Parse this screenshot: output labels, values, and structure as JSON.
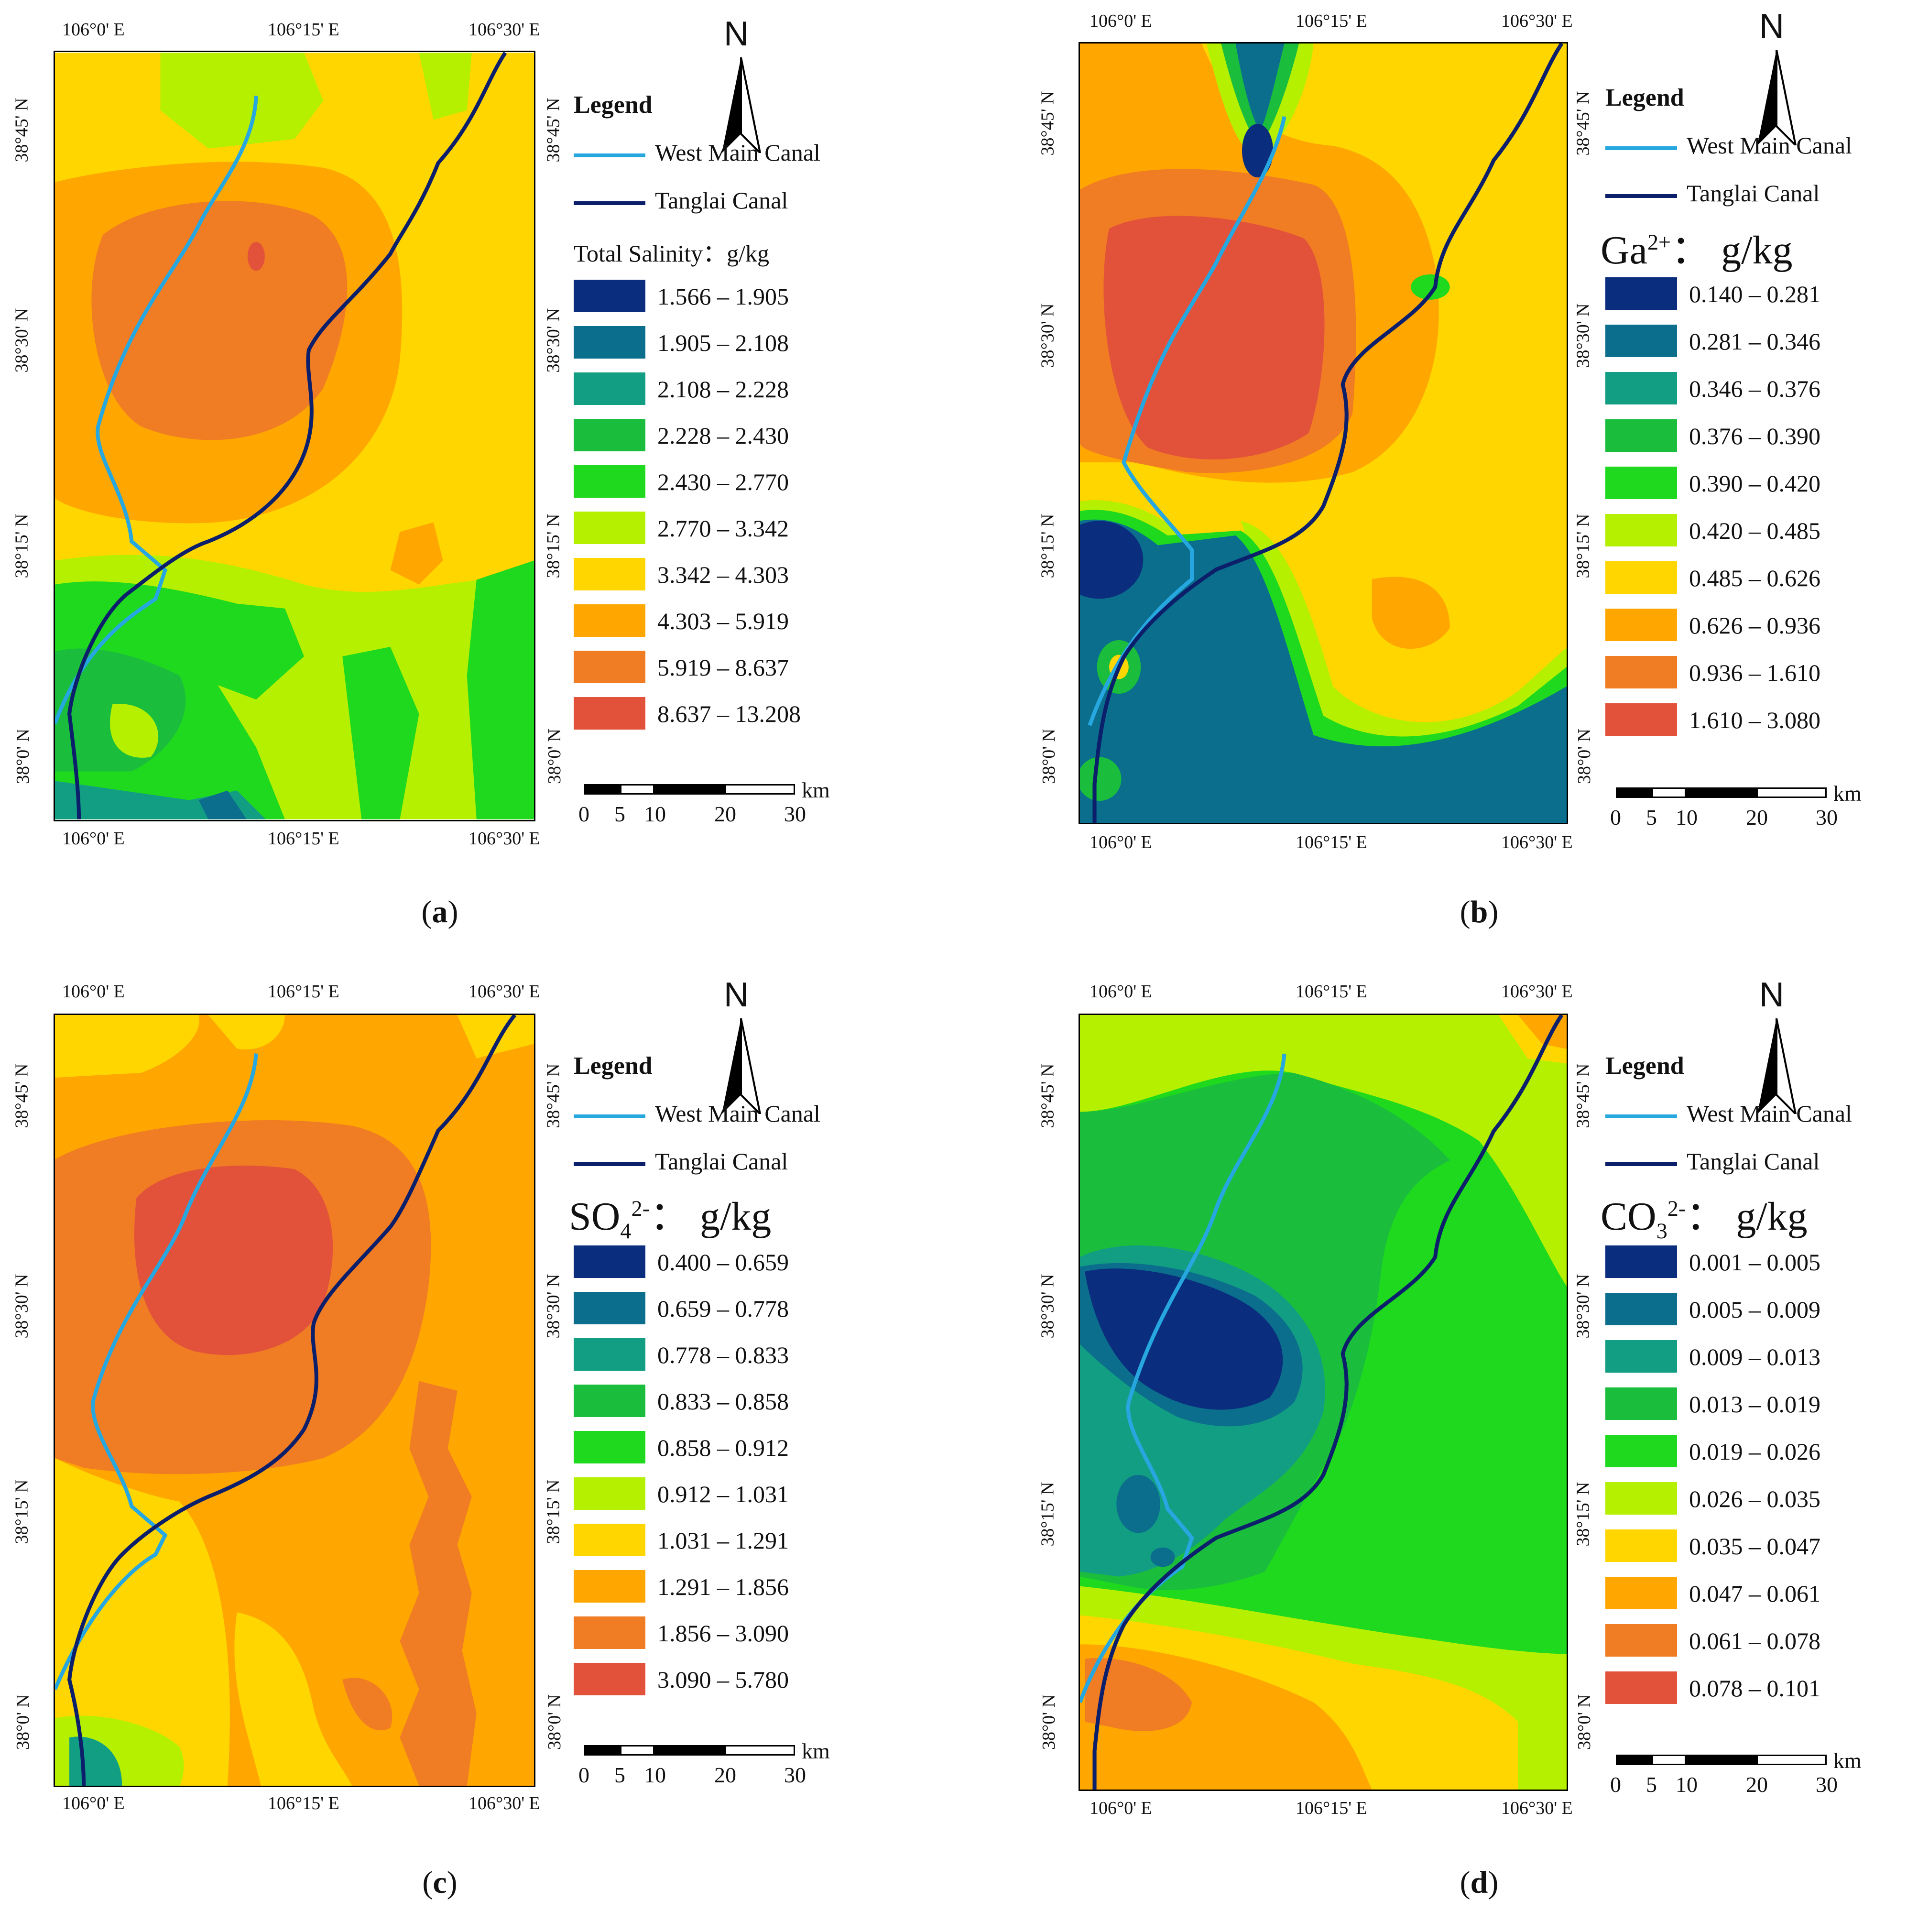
{
  "panels": [
    {
      "id": "a",
      "caption_letter": "a",
      "legend_title": "Legend",
      "canal1_label": "West Main Canal",
      "canal2_label": "Tanglai Canal",
      "variable": {
        "base": "Total Salinity",
        "sup": "",
        "sub": "",
        "unit": "：g/kg"
      },
      "classes": [
        "1.566 – 1.905",
        "1.905 – 2.108",
        "2.108 – 2.228",
        "2.228 – 2.430",
        "2.430 – 2.770",
        "2.770 – 3.342",
        "3.342 – 4.303",
        "4.303 – 5.919",
        "5.919 – 8.637",
        "8.637 – 13.208"
      ],
      "x_ticks": [
        "106°0' E",
        "106°15' E",
        "106°30' E"
      ],
      "y_ticks": [
        "38°45' N",
        "38°30' N",
        "38°15' N",
        "38°0' N"
      ],
      "north_label": "N",
      "scale_unit": "km",
      "scale_labels": [
        "0",
        "5",
        "10",
        "20",
        "30"
      ]
    },
    {
      "id": "b",
      "caption_letter": "b",
      "legend_title": "Legend",
      "canal1_label": "West Main Canal",
      "canal2_label": "Tanglai Canal",
      "variable": {
        "base": "Ga",
        "sup": "2+",
        "sub": "",
        "unit": "： g/kg"
      },
      "classes": [
        "0.140 – 0.281",
        "0.281 – 0.346",
        "0.346 – 0.376",
        "0.376 – 0.390",
        "0.390 – 0.420",
        "0.420 – 0.485",
        "0.485 – 0.626",
        "0.626 – 0.936",
        "0.936 – 1.610",
        "1.610 – 3.080"
      ],
      "x_ticks": [
        "106°0' E",
        "106°15' E",
        "106°30' E"
      ],
      "y_ticks": [
        "38°45' N",
        "38°30' N",
        "38°15' N",
        "38°0' N"
      ],
      "north_label": "N",
      "scale_unit": "km",
      "scale_labels": [
        "0",
        "5",
        "10",
        "20",
        "30"
      ]
    },
    {
      "id": "c",
      "caption_letter": "c",
      "legend_title": "Legend",
      "canal1_label": "West Main Canal",
      "canal2_label": "Tanglai Canal",
      "variable": {
        "base": "SO",
        "sup": "2-",
        "sub": "4",
        "unit": "： g/kg"
      },
      "classes": [
        "0.400 – 0.659",
        "0.659 – 0.778",
        "0.778 – 0.833",
        "0.833 – 0.858",
        "0.858 – 0.912",
        "0.912 – 1.031",
        "1.031 – 1.291",
        "1.291 – 1.856",
        "1.856 – 3.090",
        "3.090 – 5.780"
      ],
      "x_ticks": [
        "106°0' E",
        "106°15' E",
        "106°30' E"
      ],
      "y_ticks": [
        "38°45' N",
        "38°30' N",
        "38°15' N",
        "38°0' N"
      ],
      "north_label": "N",
      "scale_unit": "km",
      "scale_labels": [
        "0",
        "5",
        "10",
        "20",
        "30"
      ]
    },
    {
      "id": "d",
      "caption_letter": "d",
      "legend_title": "Legend",
      "canal1_label": "West Main Canal",
      "canal2_label": "Tanglai Canal",
      "variable": {
        "base": "CO",
        "sup": "2-",
        "sub": "3",
        "unit": "： g/kg"
      },
      "classes": [
        "0.001 – 0.005",
        "0.005 – 0.009",
        "0.009 – 0.013",
        "0.013 – 0.019",
        "0.019 – 0.026",
        "0.026 – 0.035",
        "0.035 – 0.047",
        "0.047 – 0.061",
        "0.061 – 0.078",
        "0.078 – 0.101"
      ],
      "x_ticks": [
        "106°0' E",
        "106°15' E",
        "106°30' E"
      ],
      "y_ticks": [
        "38°45' N",
        "38°30' N",
        "38°15' N",
        "38°0' N"
      ],
      "north_label": "N",
      "scale_unit": "km",
      "scale_labels": [
        "0",
        "5",
        "10",
        "20",
        "30"
      ]
    }
  ],
  "class_colors": [
    "#0b2d7e",
    "#0a6e8c",
    "#129e83",
    "#1abd3c",
    "#1ed91e",
    "#b4f000",
    "#ffd600",
    "#ffa700",
    "#f07c23",
    "#e2523b"
  ],
  "canal_colors": {
    "west_main": "#27a7e0",
    "tanglai": "#0c1f6b"
  }
}
